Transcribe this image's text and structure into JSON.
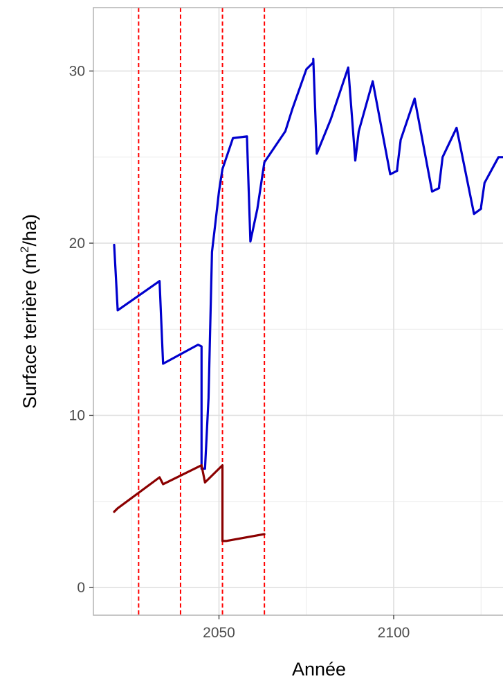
{
  "chart_data": {
    "type": "line",
    "title": "",
    "xlabel": "Année",
    "ylabel": {
      "prefix": "Surface terrière  (m",
      "superscript": "2",
      "suffix": "/ha)"
    },
    "xlim": [
      2013,
      2138
    ],
    "ylim": [
      -1.5,
      33.5
    ],
    "x_ticks": [
      {
        "value": 2050,
        "label": "2050"
      },
      {
        "value": 2100,
        "label": "2100"
      }
    ],
    "x_minor_gridlines": [
      2025,
      2075,
      2125
    ],
    "y_ticks": [
      {
        "value": 0,
        "label": "0"
      },
      {
        "value": 10,
        "label": "10"
      },
      {
        "value": 20,
        "label": "20"
      },
      {
        "value": 30,
        "label": "30"
      }
    ],
    "y_minor_gridlines": [
      5,
      15,
      25
    ],
    "grid": true,
    "colors": {
      "series_blue": "#0000cd",
      "series_darkred": "#8b0000",
      "vline": "#ff0000",
      "grid": "#ebebeb",
      "panel_border": "#b3b3b3"
    },
    "vlines": [
      2027,
      2039,
      2051,
      2063
    ],
    "series": [
      {
        "color": "#0000cd",
        "x": [
          2020,
          2021,
          2033,
          2033,
          2034,
          2044,
          2045,
          2045,
          2046,
          2047,
          2048,
          2049,
          2050,
          2050,
          2051,
          2054,
          2058,
          2059,
          2061,
          2063,
          2069,
          2071,
          2075,
          2077,
          2077,
          2078,
          2082,
          2087,
          2089,
          2089,
          2090,
          2094,
          2099,
          2101,
          2101,
          2102,
          2106,
          2111,
          2113,
          2113,
          2114,
          2118,
          2123,
          2125,
          2125,
          2126,
          2130,
          2134,
          2135
        ],
        "y": [
          19.9,
          16.1,
          17.8,
          17.8,
          13.0,
          14.1,
          14.0,
          6.9,
          6.9,
          11.0,
          19.5,
          21.2,
          23.0,
          23.0,
          24.3,
          26.1,
          26.2,
          20.1,
          22.0,
          24.7,
          26.5,
          27.8,
          30.1,
          30.5,
          30.7,
          25.2,
          27.2,
          30.2,
          24.8,
          24.8,
          26.5,
          29.4,
          24.0,
          24.2,
          24.3,
          26.0,
          28.4,
          23.0,
          23.2,
          23.3,
          25.0,
          26.7,
          21.7,
          22.0,
          22.1,
          23.5,
          25.0,
          25.0,
          25.0
        ]
      },
      {
        "color": "#8b0000",
        "x": [
          2020,
          2021,
          2033,
          2033,
          2034,
          2045,
          2045,
          2046,
          2051,
          2051,
          2052,
          2063,
          2063
        ],
        "y": [
          4.4,
          4.6,
          6.4,
          6.4,
          6.0,
          7.1,
          7.1,
          6.1,
          7.1,
          2.7,
          2.7,
          3.1,
          3.1
        ]
      }
    ]
  }
}
